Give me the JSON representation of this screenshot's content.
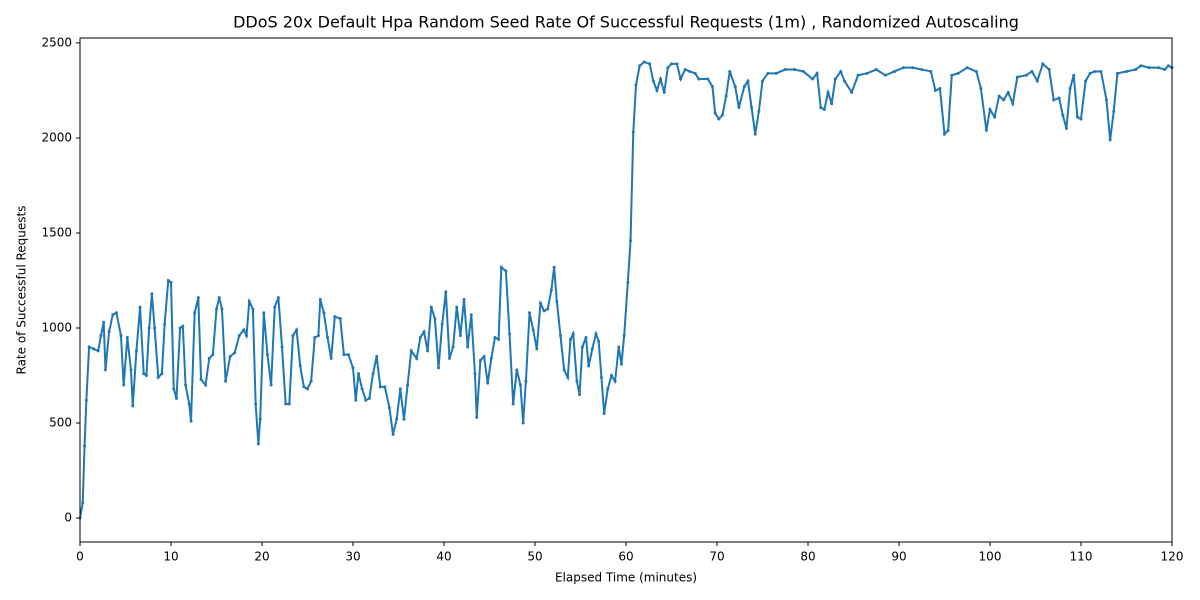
{
  "chart_data": {
    "type": "line",
    "title": "DDoS 20x Default Hpa Random Seed Rate Of Successful Requests (1m) , Randomized Autoscaling",
    "xlabel": "Elapsed Time (minutes)",
    "ylabel": "Rate of Successful Requests",
    "xlim": [
      0,
      120
    ],
    "ylim": [
      -126,
      2526
    ],
    "xticks": [
      0,
      10,
      20,
      30,
      40,
      50,
      60,
      70,
      80,
      90,
      100,
      110,
      120
    ],
    "yticks": [
      0,
      500,
      1000,
      1500,
      2000,
      2500
    ],
    "series": [
      {
        "name": "Rate of Successful Requests",
        "color": "#1f77b4",
        "x": [
          0,
          0.3,
          0.5,
          0.7,
          1,
          1.5,
          2,
          2.3,
          2.6,
          2.8,
          3.2,
          3.6,
          4,
          4.5,
          4.8,
          5.2,
          5.6,
          5.8,
          6.2,
          6.6,
          7,
          7.3,
          7.6,
          7.9,
          8.2,
          8.6,
          9,
          9.3,
          9.7,
          10,
          10.3,
          10.6,
          11,
          11.3,
          11.6,
          12,
          12.2,
          12.6,
          13,
          13.3,
          13.8,
          14.2,
          14.6,
          15,
          15.3,
          15.6,
          16,
          16.5,
          17,
          17.5,
          18,
          18.3,
          18.6,
          19,
          19.3,
          19.6,
          19.8,
          20.2,
          20.6,
          21,
          21.4,
          21.8,
          22.2,
          22.6,
          23,
          23.4,
          23.8,
          24.2,
          24.6,
          25,
          25.4,
          25.8,
          26.2,
          26.4,
          26.8,
          27.2,
          27.6,
          28,
          28.6,
          29,
          29.5,
          30,
          30.3,
          30.6,
          31,
          31.4,
          31.8,
          32.2,
          32.6,
          33,
          33.5,
          34,
          34.4,
          34.8,
          35.2,
          35.6,
          36,
          36.4,
          37,
          37.4,
          37.8,
          38.2,
          38.6,
          39,
          39.4,
          39.8,
          40.2,
          40.6,
          41,
          41.4,
          41.8,
          42.2,
          42.6,
          43,
          43.4,
          43.6,
          44,
          44.4,
          44.8,
          45.2,
          45.6,
          46,
          46.3,
          46.8,
          47.2,
          47.6,
          48,
          48.4,
          48.7,
          49,
          49.4,
          49.8,
          50.2,
          50.6,
          51,
          51.4,
          51.8,
          52.1,
          52.4,
          52.8,
          53.2,
          53.6,
          53.9,
          54.2,
          54.6,
          54.9,
          55.2,
          55.6,
          55.9,
          56.3,
          56.7,
          57,
          57.3,
          57.6,
          58,
          58.4,
          58.8,
          59.2,
          59.5,
          59.8,
          60.2,
          60.5,
          60.8,
          61.1,
          61.5,
          62,
          62.6,
          63,
          63.4,
          63.8,
          64.2,
          64.6,
          65,
          65.6,
          66,
          66.5,
          67,
          67.6,
          68,
          69,
          69.5,
          69.8,
          70.2,
          70.6,
          71,
          71.4,
          72,
          72.4,
          73,
          73.4,
          73.8,
          74.2,
          74.6,
          75,
          75.6,
          76.5,
          77.5,
          78.5,
          79.5,
          80.5,
          81,
          81.4,
          81.8,
          82.2,
          82.6,
          83,
          83.6,
          84,
          84.8,
          85.5,
          86.5,
          87.5,
          88.5,
          89.5,
          90.5,
          91.5,
          92.5,
          93.5,
          94,
          94.5,
          95,
          95.4,
          95.8,
          96.5,
          97.5,
          98.5,
          99,
          99.6,
          100,
          100.5,
          101,
          101.5,
          102,
          102.5,
          103,
          104,
          104.6,
          105.2,
          105.8,
          106.5,
          107,
          107.6,
          108,
          108.4,
          108.8,
          109.2,
          109.6,
          110,
          110.5,
          111,
          111.5,
          112.2,
          112.8,
          113.2,
          113.6,
          114,
          115,
          116,
          116.6,
          117.5,
          118.5,
          119.2,
          119.6,
          120
        ],
        "values": [
          0,
          80,
          380,
          620,
          900,
          890,
          880,
          960,
          1030,
          780,
          980,
          1070,
          1080,
          960,
          700,
          950,
          780,
          590,
          880,
          1110,
          760,
          750,
          1000,
          1180,
          1000,
          740,
          760,
          1020,
          1250,
          1240,
          680,
          630,
          1000,
          1010,
          700,
          600,
          510,
          1080,
          1160,
          730,
          700,
          840,
          860,
          1100,
          1160,
          1100,
          720,
          850,
          870,
          960,
          990,
          960,
          1140,
          1100,
          600,
          390,
          520,
          1080,
          860,
          700,
          1110,
          1160,
          900,
          600,
          600,
          960,
          990,
          800,
          690,
          680,
          720,
          950,
          960,
          1150,
          1080,
          950,
          840,
          1060,
          1050,
          860,
          860,
          790,
          620,
          760,
          680,
          620,
          630,
          760,
          850,
          690,
          690,
          580,
          440,
          520,
          680,
          520,
          700,
          880,
          840,
          950,
          980,
          880,
          1110,
          1050,
          790,
          1020,
          1190,
          840,
          900,
          1110,
          960,
          1150,
          900,
          1070,
          760,
          530,
          830,
          850,
          710,
          840,
          950,
          940,
          1320,
          1300,
          970,
          600,
          780,
          700,
          500,
          720,
          1080,
          990,
          890,
          1130,
          1090,
          1100,
          1200,
          1320,
          1140,
          960,
          780,
          740,
          940,
          970,
          720,
          650,
          900,
          950,
          800,
          890,
          970,
          930,
          740,
          550,
          680,
          750,
          720,
          900,
          810,
          960,
          1240,
          1460,
          2030,
          2280,
          2380,
          2400,
          2390,
          2300,
          2250,
          2310,
          2240,
          2370,
          2390,
          2390,
          2310,
          2360,
          2350,
          2340,
          2310,
          2310,
          2270,
          2130,
          2100,
          2120,
          2220,
          2350,
          2270,
          2160,
          2270,
          2300,
          2160,
          2020,
          2140,
          2300,
          2340,
          2340,
          2360,
          2360,
          2350,
          2310,
          2340,
          2160,
          2150,
          2240,
          2180,
          2310,
          2350,
          2300,
          2240,
          2330,
          2340,
          2360,
          2330,
          2350,
          2370,
          2370,
          2360,
          2350,
          2250,
          2260,
          2020,
          2040,
          2330,
          2340,
          2370,
          2350,
          2260,
          2040,
          2150,
          2110,
          2220,
          2200,
          2240,
          2180,
          2320,
          2330,
          2350,
          2300,
          2390,
          2360,
          2200,
          2210,
          2120,
          2050,
          2260,
          2330,
          2110,
          2100,
          2300,
          2340,
          2350,
          2350,
          2200,
          1990,
          2140,
          2340,
          2350,
          2360,
          2380,
          2370,
          2370,
          2360,
          2380,
          2370
        ]
      }
    ]
  }
}
